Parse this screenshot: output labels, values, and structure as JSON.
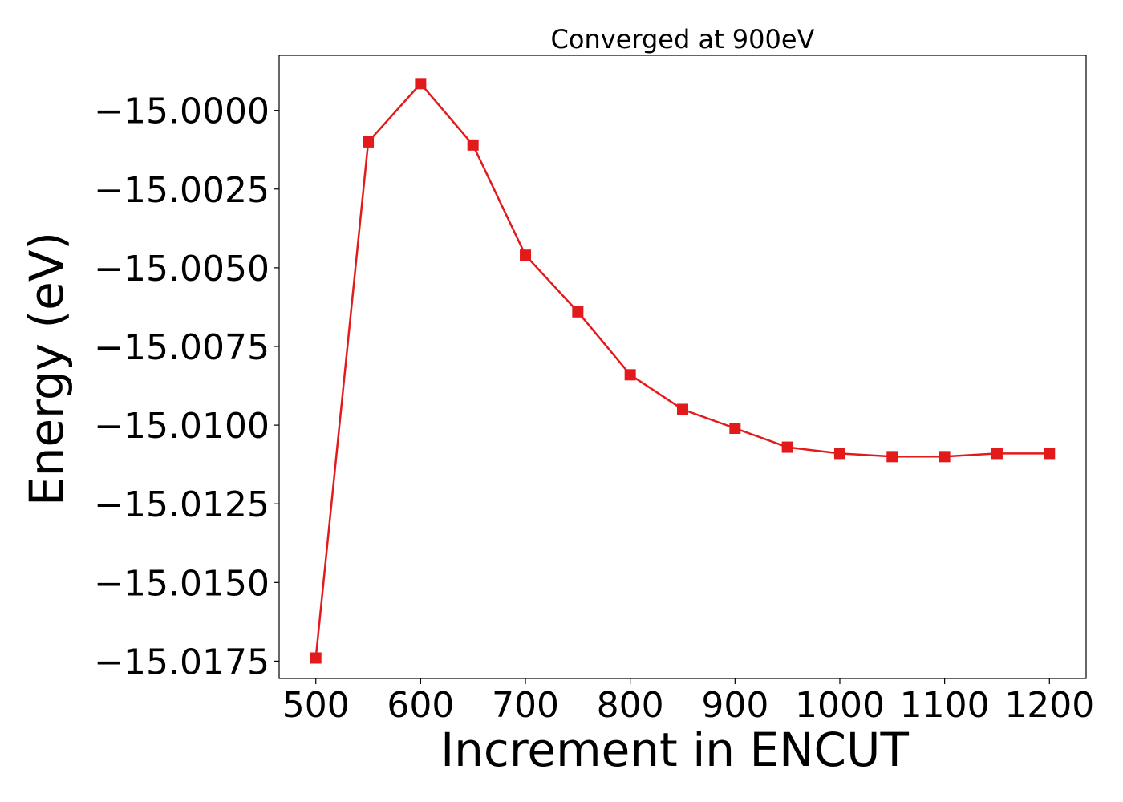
{
  "chart_data": {
    "type": "line",
    "title": "Converged at 900eV",
    "xlabel": "Increment in ENCUT",
    "ylabel": "Energy (eV)",
    "x": [
      500,
      550,
      600,
      650,
      700,
      750,
      800,
      850,
      900,
      950,
      1000,
      1050,
      1100,
      1150,
      1200
    ],
    "series": [
      {
        "values": [
          -15.0174,
          -15.001,
          -14.99915,
          -15.0011,
          -15.0046,
          -15.0064,
          -15.0084,
          -15.0095,
          -15.0101,
          -15.0107,
          -15.0109,
          -15.011,
          -15.011,
          -15.0109,
          -15.0109
        ],
        "color": "#e31a1c",
        "marker": "square"
      }
    ],
    "xlim": [
      465,
      1235
    ],
    "ylim": [
      -15.01805,
      -14.99825
    ],
    "xticks": [
      500,
      600,
      700,
      800,
      900,
      1000,
      1100,
      1200
    ],
    "xtick_labels": [
      "500",
      "600",
      "700",
      "800",
      "900",
      "1000",
      "1100",
      "1200"
    ],
    "yticks": [
      -15.0,
      -15.0025,
      -15.005,
      -15.0075,
      -15.01,
      -15.0125,
      -15.015,
      -15.0175
    ],
    "ytick_labels": [
      "−15.0000",
      "−15.0025",
      "−15.0050",
      "−15.0075",
      "−15.0100",
      "−15.0125",
      "−15.0150",
      "−15.0175"
    ],
    "grid": false,
    "legend": "none"
  }
}
